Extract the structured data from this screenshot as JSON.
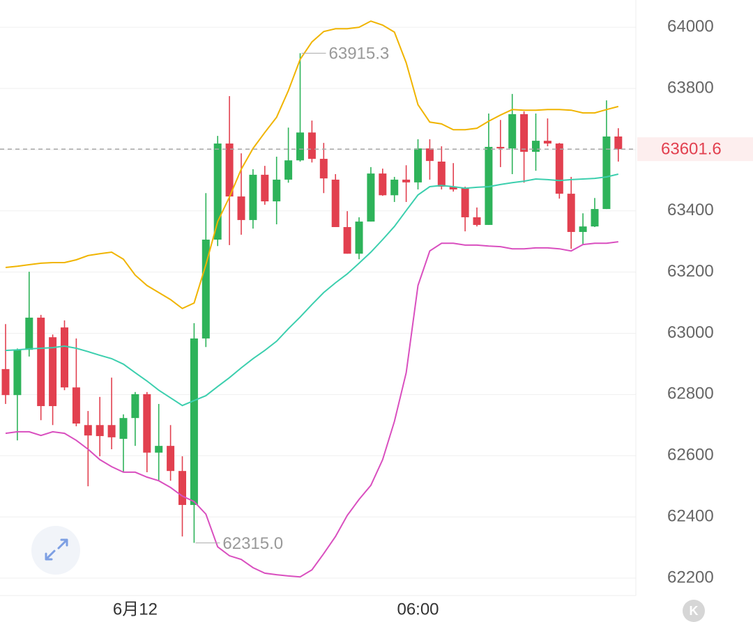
{
  "chart_data": {
    "type": "candlestick",
    "categories": [
      null,
      null,
      null,
      null,
      null,
      null,
      null,
      null,
      null,
      null,
      null,
      "6月12",
      null,
      null,
      null,
      null,
      null,
      null,
      null,
      null,
      null,
      null,
      null,
      null,
      null,
      null,
      null,
      null,
      null,
      null,
      null,
      null,
      null,
      null,
      null,
      "06:00",
      null,
      null,
      null,
      null,
      null,
      null,
      null,
      null,
      null,
      null,
      null,
      null,
      null,
      null,
      null,
      null,
      null
    ],
    "open": [
      62883,
      62798,
      62946,
      63051,
      62987,
      63019,
      62823,
      62700,
      62700,
      62700,
      62655,
      62723,
      62801,
      62610,
      62632,
      62550,
      62439,
      62983,
      63306,
      63620,
      63447,
      63370,
      63518,
      63431,
      63502,
      63565,
      63656,
      63570,
      63502,
      63347,
      63260,
      63365,
      63522,
      63451,
      63502,
      63493,
      63604,
      63561,
      63479,
      63474,
      63379,
      63354,
      63609,
      63604,
      63716,
      63593,
      63629,
      63620,
      63456,
      63331,
      63349,
      63406,
      63643
    ],
    "high": [
      63030,
      62950,
      63201,
      63060,
      62996,
      63042,
      62983,
      62746,
      62792,
      62855,
      62735,
      62808,
      62808,
      62769,
      62700,
      62598,
      63033,
      63458,
      63645,
      63775,
      63588,
      63536,
      63547,
      63577,
      63672,
      63915.3,
      63695,
      63622,
      63520,
      63399,
      63379,
      63543,
      63538,
      63511,
      63549,
      63634,
      63634,
      63611,
      63556,
      63479,
      63411,
      63718,
      63697,
      63782,
      63725,
      63718,
      63702,
      63622,
      63511,
      63392,
      63442,
      63761,
      63670
    ],
    "low": [
      62769,
      62650,
      62924,
      62716,
      62700,
      62814,
      62696,
      62500,
      62598,
      62621,
      62546,
      62632,
      62546,
      62518,
      62518,
      62336,
      62315,
      62955,
      63285,
      63288,
      63322,
      63342,
      63420,
      63356,
      63492,
      63561,
      63558,
      63458,
      63347,
      63260,
      63242,
      63365,
      63449,
      63429,
      63429,
      63470,
      63502,
      63470,
      63463,
      63333,
      63349,
      63354,
      63543,
      63520,
      63492,
      63531,
      63611,
      63440,
      63276,
      63288,
      63347,
      63406,
      63561
    ],
    "close": [
      62798,
      62946,
      63051,
      62762,
      62762,
      62823,
      62705,
      62666,
      62664,
      62660,
      62723,
      62801,
      62610,
      62632,
      62550,
      62439,
      62983,
      63306,
      63620,
      63447,
      63370,
      63518,
      63431,
      63502,
      63565,
      63656,
      63570,
      63506,
      63347,
      63260,
      63365,
      63522,
      63451,
      63502,
      63493,
      63604,
      63563,
      63479,
      63470,
      63379,
      63354,
      63609,
      63604,
      63716,
      63593,
      63629,
      63620,
      63456,
      63331,
      63349,
      63406,
      63643,
      63601.6
    ],
    "up_color": "#2eb35a",
    "down_color": "#e2404f",
    "lines": [
      {
        "color": "#f0b400",
        "values": [
          63215,
          63219,
          63224,
          63229,
          63231,
          63231,
          63240,
          63254,
          63260,
          63265,
          63242,
          63190,
          63156,
          63133,
          63110,
          63081,
          63099,
          63224,
          63365,
          63445,
          63536,
          63604,
          63656,
          63706,
          63793,
          63895,
          63952,
          63986,
          63995,
          63995,
          64000,
          64020,
          64007,
          63984,
          63884,
          63747,
          63690,
          63684,
          63665,
          63665,
          63670,
          63693,
          63713,
          63731,
          63729,
          63729,
          63731,
          63731,
          63729,
          63720,
          63720,
          63731,
          63741
        ]
      },
      {
        "color": "#3ccfae",
        "values": [
          62944,
          62946,
          62949,
          62951,
          62953,
          62958,
          62951,
          62940,
          62928,
          62917,
          62899,
          62871,
          62844,
          62814,
          62789,
          62764,
          62780,
          62796,
          62826,
          62855,
          62887,
          62917,
          62944,
          62974,
          63015,
          63053,
          63094,
          63133,
          63165,
          63194,
          63229,
          63265,
          63306,
          63349,
          63401,
          63452,
          63479,
          63483,
          63479,
          63474,
          63477,
          63479,
          63486,
          63492,
          63497,
          63504,
          63502,
          63499,
          63502,
          63504,
          63506,
          63511,
          63520
        ]
      },
      {
        "color": "#d94fbf",
        "values": [
          62673,
          62678,
          62678,
          62666,
          62678,
          62673,
          62650,
          62621,
          62587,
          62564,
          62546,
          62546,
          62530,
          62518,
          62496,
          62468,
          62450,
          62409,
          62302,
          62273,
          62261,
          62234,
          62216,
          62211,
          62207,
          62204,
          62227,
          62280,
          62336,
          62405,
          62457,
          62503,
          62587,
          62712,
          62871,
          63156,
          63269,
          63294,
          63294,
          63288,
          63288,
          63285,
          63283,
          63276,
          63276,
          63279,
          63279,
          63276,
          63269,
          63290,
          63294,
          63294,
          63299
        ]
      }
    ],
    "ylim": [
      62143,
      64089
    ],
    "yticks": [
      62200,
      62400,
      62600,
      62800,
      63000,
      63200,
      63400,
      63600,
      63800,
      64000
    ],
    "grid": true,
    "max_label": {
      "value": 63915.3,
      "label": "63915.3"
    },
    "min_label": {
      "value": 62315,
      "label": "62315.0"
    },
    "current_price": 63601.6,
    "badge": "K"
  }
}
